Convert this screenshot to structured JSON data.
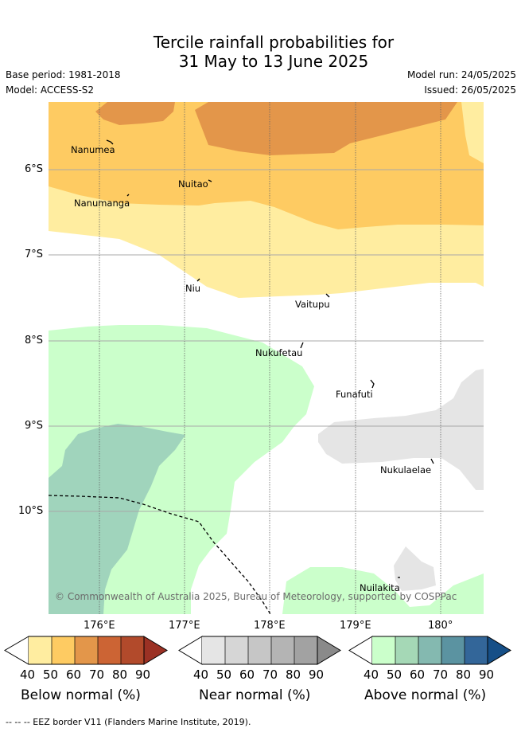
{
  "title_line1": "Tercile rainfall probabilities for",
  "title_line2": "31 May to 13 June 2025",
  "base_period": "Base period: 1981-2018",
  "model": "Model: ACCESS-S2",
  "model_run": "Model run: 24/05/2025",
  "issued": "Issued: 26/05/2025",
  "lat_ticks": [
    "6°S",
    "7°S",
    "8°S",
    "9°S",
    "10°S"
  ],
  "lon_ticks": [
    "176°E",
    "177°E",
    "178°E",
    "179°E",
    "180°"
  ],
  "places": [
    "Nanumea",
    "Nuitao",
    "Nanumanga",
    "Niu",
    "Vaitupu",
    "Nukufetau",
    "Funafuti",
    "Nukulaelae",
    "Nuilakita"
  ],
  "copyright": "© Commonwealth of Australia 2025, Bureau of Meteorology, supported by COSPPac",
  "colorbars": [
    {
      "label": "Below normal (%)",
      "ticks": [
        "40",
        "50",
        "60",
        "70",
        "80",
        "90"
      ],
      "colors": [
        "#ffeda0",
        "#fecb62",
        "#e3964a",
        "#cc6434",
        "#b24a2b",
        "#9b3124"
      ]
    },
    {
      "label": "Near normal (%)",
      "ticks": [
        "40",
        "50",
        "60",
        "70",
        "80",
        "90"
      ],
      "colors": [
        "#e5e5e5",
        "#d6d6d6",
        "#c6c6c6",
        "#b4b4b4",
        "#a2a2a2",
        "#8a8a8a"
      ]
    },
    {
      "label": "Above normal (%)",
      "ticks": [
        "40",
        "50",
        "60",
        "70",
        "80",
        "90"
      ],
      "colors": [
        "#cbffcb",
        "#a5d8b6",
        "#84b9b0",
        "#5b93a1",
        "#336699",
        "#164f87"
      ]
    }
  ],
  "footer": "-- -- -- EEZ border V11 (Flanders Marine Institute, 2019)."
}
